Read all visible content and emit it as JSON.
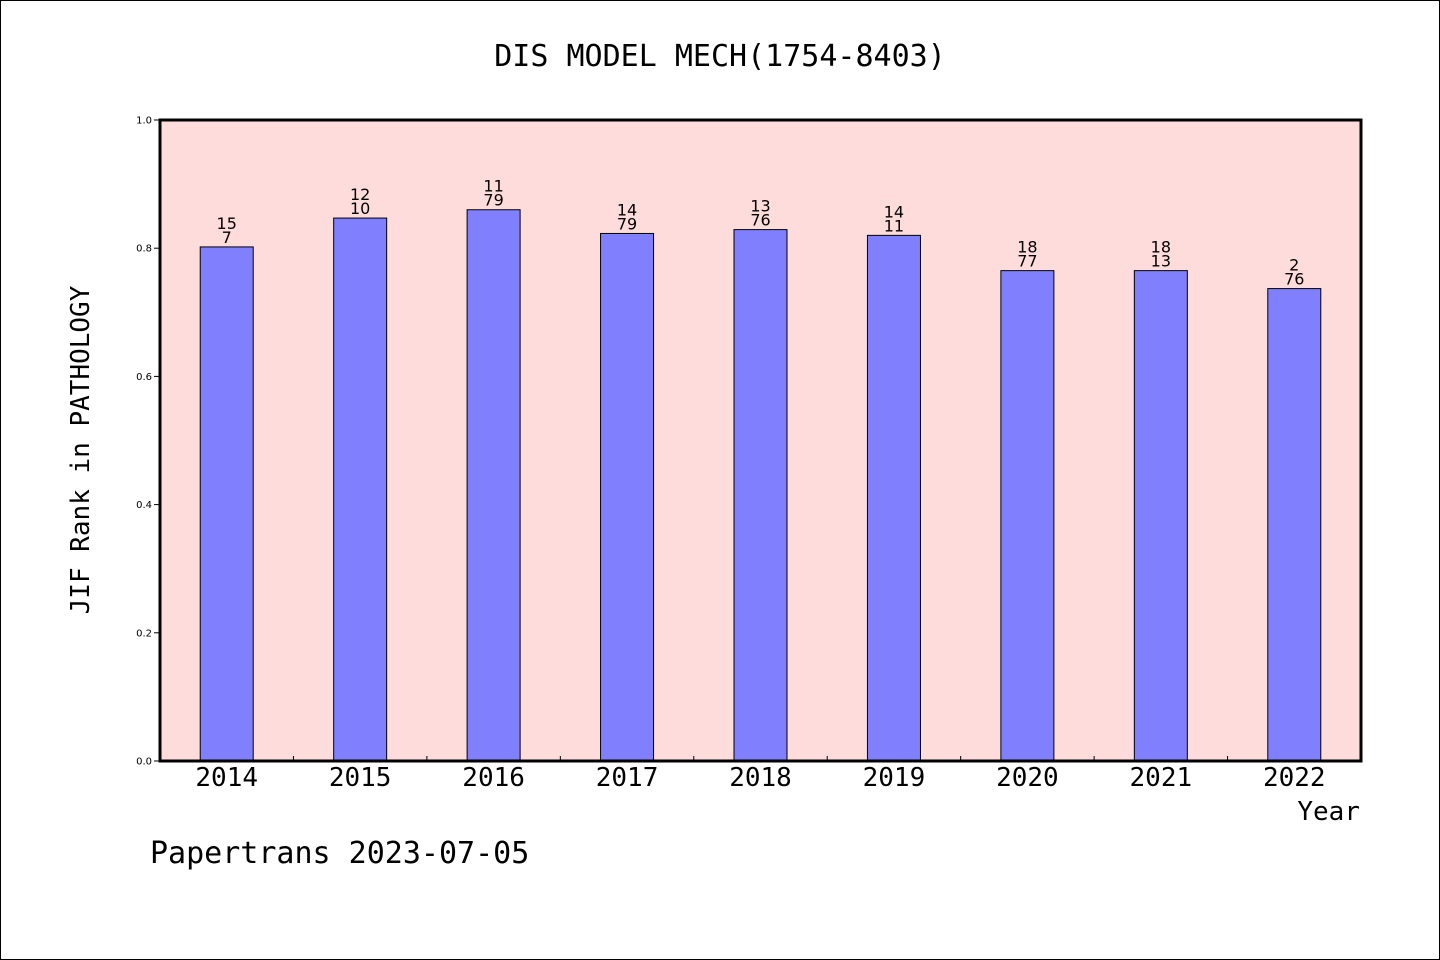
{
  "chart_data": {
    "type": "bar",
    "title": "DIS MODEL MECH(1754-8403)",
    "xlabel": "Year",
    "ylabel": "JIF Rank in PATHOLOGY",
    "ylim": [
      0.0,
      1.0
    ],
    "yticks": [
      "0.0",
      "0.2",
      "0.4",
      "0.6",
      "0.8",
      "1.0"
    ],
    "categories": [
      "2014",
      "2015",
      "2016",
      "2017",
      "2018",
      "2019",
      "2020",
      "2021",
      "2022"
    ],
    "values": [
      0.802,
      0.847,
      0.86,
      0.823,
      0.829,
      0.82,
      0.765,
      0.765,
      0.737
    ],
    "bar_labels": [
      [
        "15",
        "7"
      ],
      [
        "12",
        "10"
      ],
      [
        "11",
        "79"
      ],
      [
        "14",
        "79"
      ],
      [
        "13",
        "76"
      ],
      [
        "14",
        "11"
      ],
      [
        "18",
        "77"
      ],
      [
        "18",
        "13"
      ],
      [
        "2",
        "76"
      ]
    ],
    "colors": {
      "bar": "#8080ff",
      "plot_bg": "#ffdcdc"
    },
    "grid": false,
    "legend": "none"
  },
  "footer": {
    "text": "Papertrans 2023-07-05"
  }
}
